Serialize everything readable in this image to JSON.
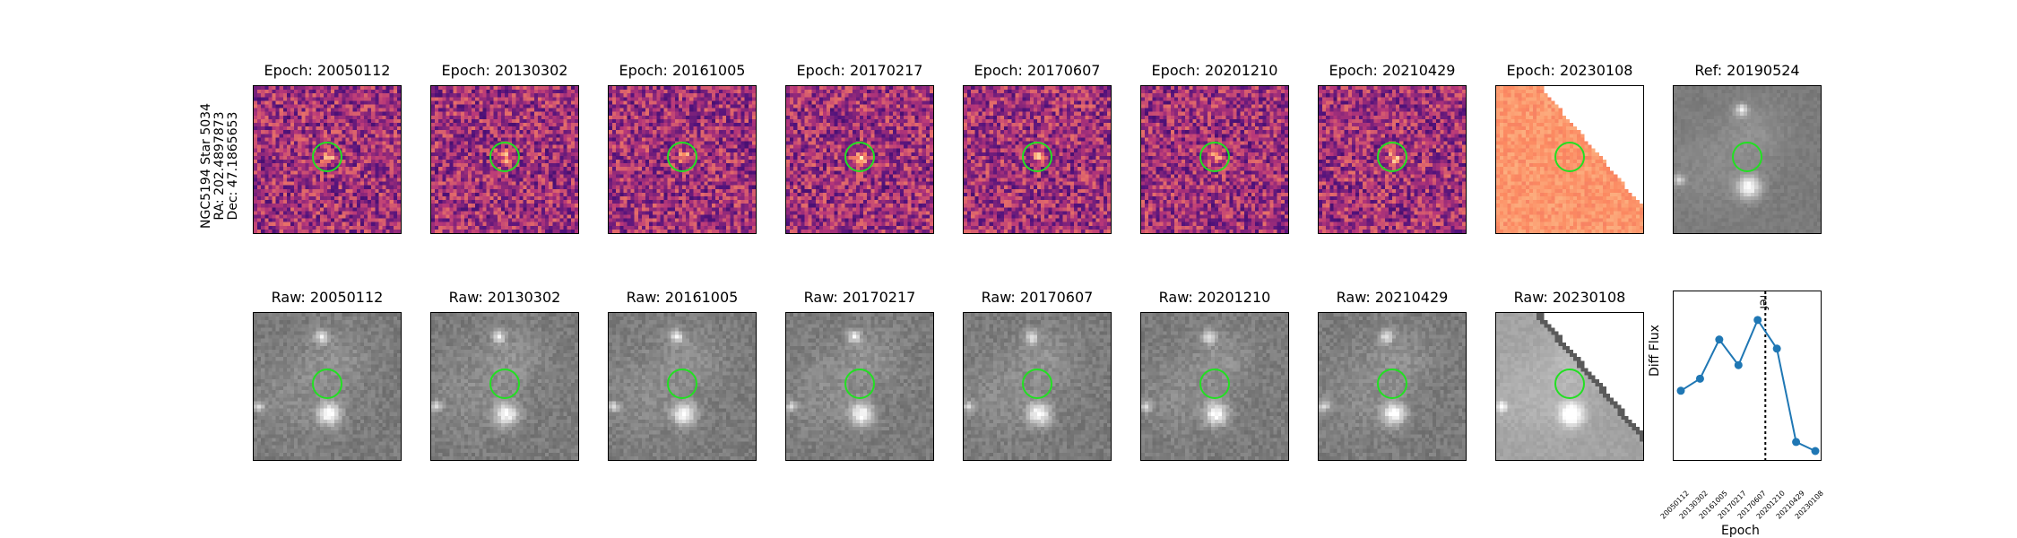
{
  "header": {
    "star": "NGC5194 Star 5034",
    "ra": "RA: 202.4897873",
    "dec": "Dec: 47.1865653"
  },
  "diff_panels": [
    {
      "title": "Epoch: 20050112"
    },
    {
      "title": "Epoch: 20130302"
    },
    {
      "title": "Epoch: 20161005"
    },
    {
      "title": "Epoch: 20170217"
    },
    {
      "title": "Epoch: 20170607"
    },
    {
      "title": "Epoch: 20201210"
    },
    {
      "title": "Epoch: 20210429"
    },
    {
      "title": "Epoch: 20230108"
    },
    {
      "title": "Ref: 20190524"
    }
  ],
  "raw_panels": [
    {
      "title": "Raw: 20050112"
    },
    {
      "title": "Raw: 20130302"
    },
    {
      "title": "Raw: 20161005"
    },
    {
      "title": "Raw: 20170217"
    },
    {
      "title": "Raw: 20170607"
    },
    {
      "title": "Raw: 20201210"
    },
    {
      "title": "Raw: 20210429"
    },
    {
      "title": "Raw: 20230108"
    }
  ],
  "colors": {
    "circle": "#22e022",
    "series": "#1f77b4"
  },
  "chart_data": {
    "type": "line",
    "xlabel": "Epoch",
    "ylabel": "Diff Flux",
    "categories": [
      "20050112",
      "20130302",
      "20161005",
      "20170217",
      "20170607",
      "20201210",
      "20210429",
      "20230108"
    ],
    "values": [
      0.4,
      0.48,
      0.74,
      0.57,
      0.87,
      0.68,
      0.06,
      0.0
    ],
    "ref_label": "ref",
    "ref_position_index": 4.4
  }
}
